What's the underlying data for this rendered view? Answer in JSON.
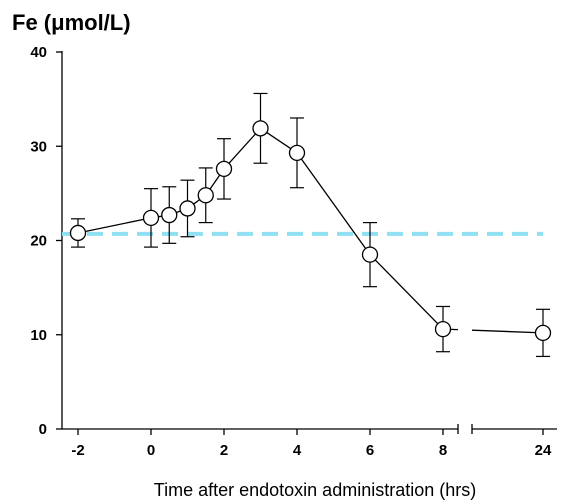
{
  "chart_data": {
    "type": "line",
    "title": "Fe (μmol/L)",
    "xlabel": "Time after endotoxin administration (hrs)",
    "ylabel": "",
    "ylim": [
      0,
      40
    ],
    "y_ticks": [
      0,
      10,
      20,
      30,
      40
    ],
    "x_ticks": [
      {
        "value": -2,
        "label": "-2"
      },
      {
        "value": 0,
        "label": "0"
      },
      {
        "value": 2,
        "label": "2"
      },
      {
        "value": 4,
        "label": "4"
      },
      {
        "value": 6,
        "label": "6"
      },
      {
        "value": 8,
        "label": "8"
      },
      {
        "value": 24,
        "label": "24"
      }
    ],
    "x_axis_break": {
      "between": [
        8,
        24
      ]
    },
    "grid": false,
    "reference_line": {
      "y": 20.7,
      "style": "dashed",
      "color": "#8ee0f2"
    },
    "series": [
      {
        "color": "#000000",
        "marker": "open-circle",
        "points": [
          {
            "x": -2,
            "y": 20.8,
            "err": 1.5
          },
          {
            "x": 0,
            "y": 22.4,
            "err": 3.1
          },
          {
            "x": 0.5,
            "y": 22.7,
            "err": 3.0
          },
          {
            "x": 1,
            "y": 23.4,
            "err": 3.0
          },
          {
            "x": 1.5,
            "y": 24.8,
            "err": 2.9
          },
          {
            "x": 2,
            "y": 27.6,
            "err": 3.2
          },
          {
            "x": 3,
            "y": 31.9,
            "err": 3.7
          },
          {
            "x": 4,
            "y": 29.3,
            "err": 3.7
          },
          {
            "x": 6,
            "y": 18.5,
            "err": 3.4
          },
          {
            "x": 8,
            "y": 10.6,
            "err": 2.4
          },
          {
            "x": 24,
            "y": 10.2,
            "err": 2.5
          }
        ]
      }
    ]
  }
}
